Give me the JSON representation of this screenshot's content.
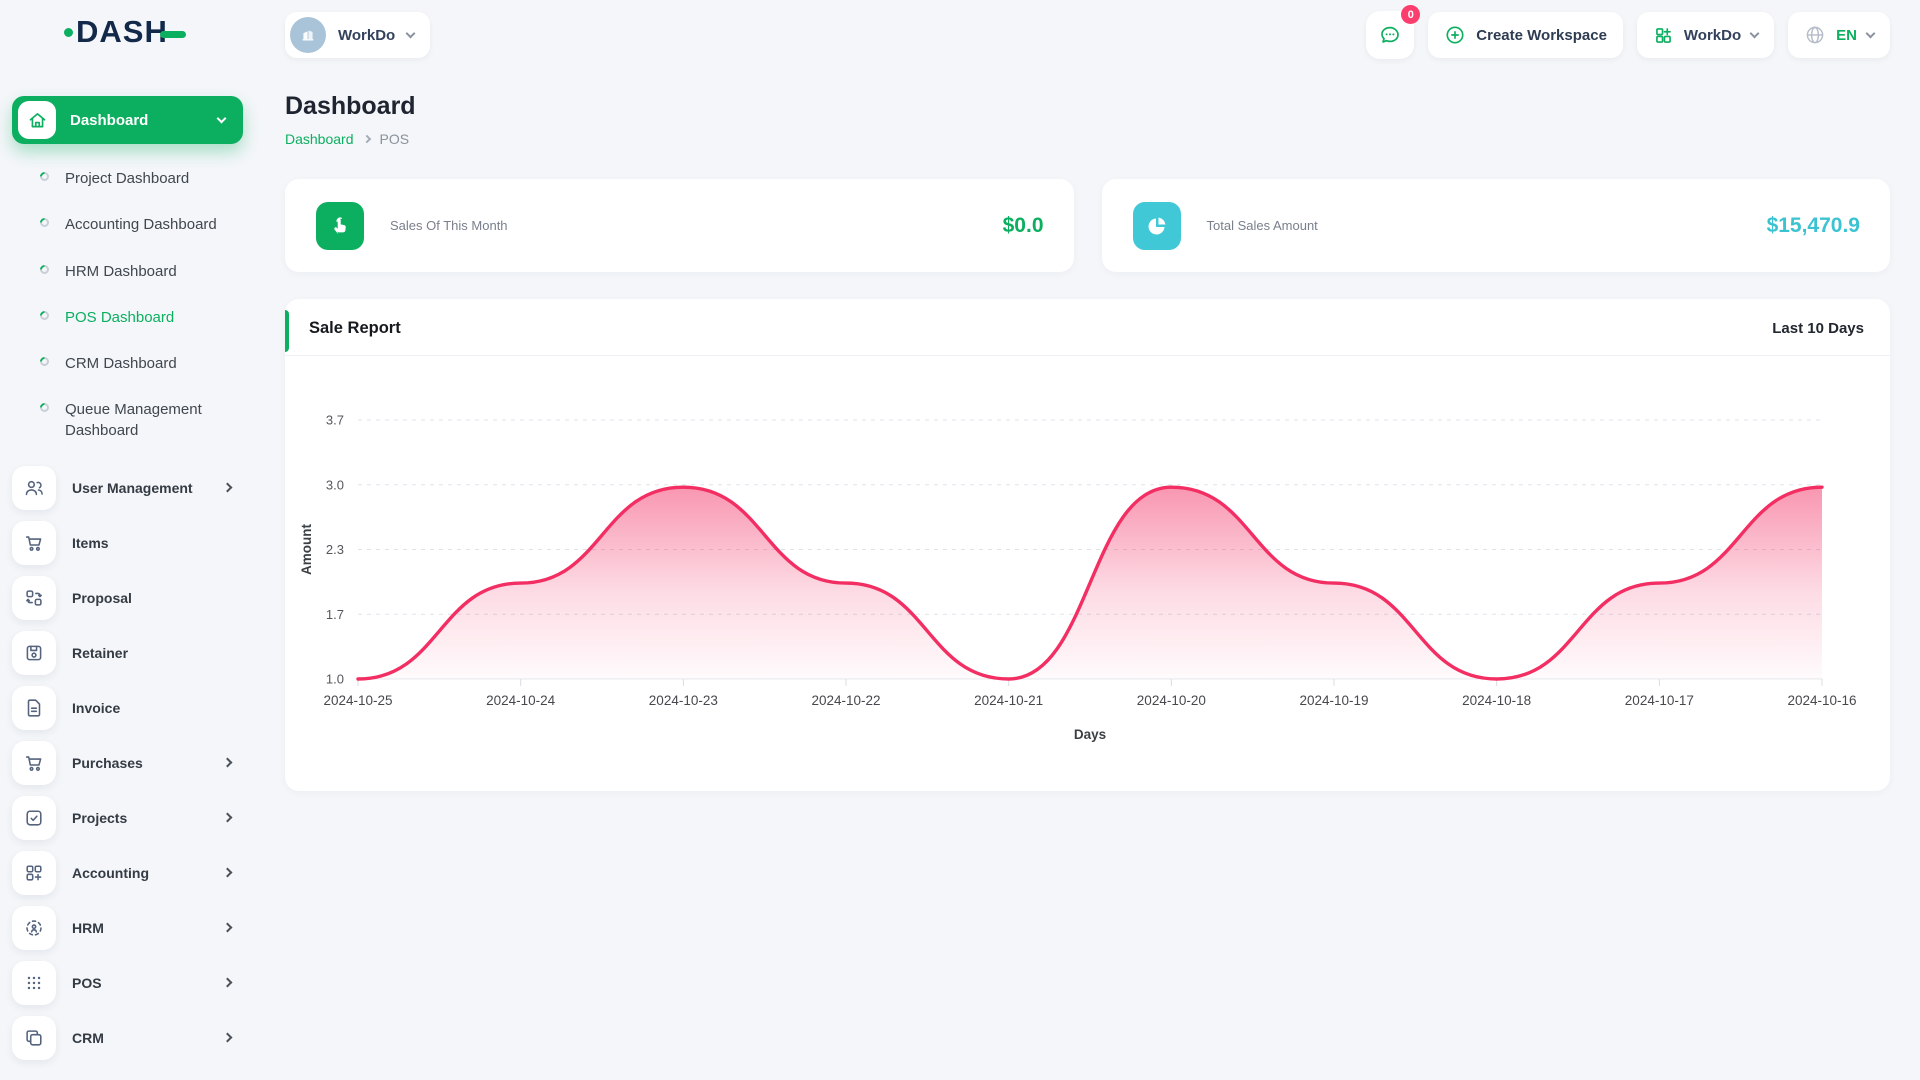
{
  "brand": {
    "logo_text": "DASH"
  },
  "workspace_switcher": {
    "name": "WorkDo"
  },
  "topbar": {
    "messages_badge": "0",
    "create_workspace_label": "Create Workspace",
    "workspace_label": "WorkDo",
    "language_label": "EN"
  },
  "sidebar": {
    "dashboard_group": {
      "label": "Dashboard",
      "children": [
        "Project Dashboard",
        "Accounting Dashboard",
        "HRM Dashboard",
        "POS Dashboard",
        "CRM Dashboard",
        "Queue Management Dashboard"
      ],
      "active_child": "POS Dashboard"
    },
    "items": [
      {
        "label": "User Management",
        "icon": "users-icon",
        "expandable": true
      },
      {
        "label": "Items",
        "icon": "cart-icon",
        "expandable": false
      },
      {
        "label": "Proposal",
        "icon": "swap-grid-icon",
        "expandable": false
      },
      {
        "label": "Retainer",
        "icon": "floppy-icon",
        "expandable": false
      },
      {
        "label": "Invoice",
        "icon": "document-icon",
        "expandable": false
      },
      {
        "label": "Purchases",
        "icon": "cart-icon",
        "expandable": true
      },
      {
        "label": "Projects",
        "icon": "check-square-icon",
        "expandable": true
      },
      {
        "label": "Accounting",
        "icon": "grid-plus-icon",
        "expandable": true
      },
      {
        "label": "HRM",
        "icon": "dashed-circle-user-icon",
        "expandable": true
      },
      {
        "label": "POS",
        "icon": "dots-grid-icon",
        "expandable": true
      },
      {
        "label": "CRM",
        "icon": "overlap-squares-icon",
        "expandable": true
      }
    ]
  },
  "page": {
    "title": "Dashboard",
    "breadcrumb": [
      "Dashboard",
      "POS"
    ]
  },
  "stats": [
    {
      "label": "Sales Of This Month",
      "value": "$0.0",
      "icon": "hand-pointer-icon",
      "accent": "#0caf60"
    },
    {
      "label": "Total Sales Amount",
      "value": "$15,470.9",
      "icon": "pie-chart-icon",
      "accent": "#41c8d6"
    }
  ],
  "chart_card": {
    "title": "Sale Report",
    "period": "Last 10 Days"
  },
  "chart_data": {
    "type": "area",
    "title": "Sale Report",
    "categories": [
      "2024-10-25",
      "2024-10-24",
      "2024-10-23",
      "2024-10-22",
      "2024-10-21",
      "2024-10-20",
      "2024-10-19",
      "2024-10-18",
      "2024-10-17",
      "2024-10-16"
    ],
    "values": [
      1,
      2,
      3,
      2,
      1,
      3,
      2,
      1,
      2,
      3
    ],
    "xlabel": "Days",
    "ylabel": "Amount",
    "ylim": [
      1.0,
      3.7
    ],
    "ytick_labels": [
      "3.7",
      "3.0",
      "2.3",
      "1.7",
      "1.0"
    ],
    "grid": "horizontal-dashed",
    "legend": "none",
    "line_color": "#f22e63",
    "curve": "smooth"
  },
  "colors": {
    "primary_green": "#0caf60",
    "chart_pink": "#f22e63",
    "cyan": "#41c8d6",
    "badge_pink": "#fb3e6e",
    "navy": "#12294a",
    "page_bg": "#f4f6f9"
  }
}
